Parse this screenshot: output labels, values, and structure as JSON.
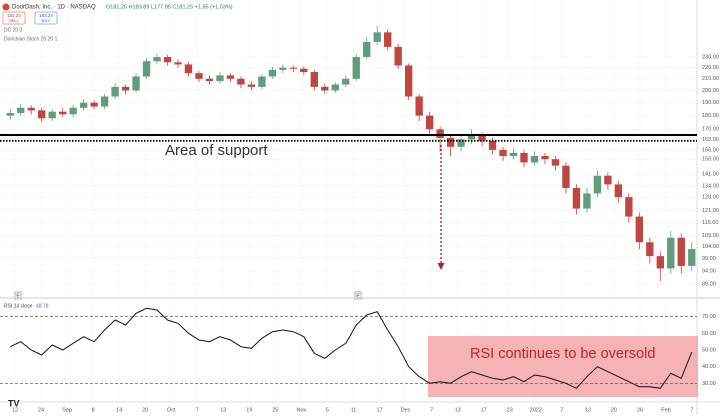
{
  "header": {
    "symbol": "DoorDash, Inc. · 1D · NASDAQ",
    "ohlc": "O181.25 H183.89 L177.95 C181.25 +1.85 (+1.03%)",
    "sell_price": "181.24",
    "sell": "SELL",
    "buy_price": "183.24",
    "buy": "BUY",
    "indicator_1": "DC 20 0",
    "indicator_2": "Donchian Stoch 20 20 1"
  },
  "chart_data": [
    {
      "type": "candlestick",
      "log_scale": true,
      "grid": true,
      "up_color": "#5e9e7c",
      "down_color": "#c0463f",
      "open": [
        180,
        182,
        186,
        184,
        178,
        183,
        181,
        186,
        190,
        187,
        195,
        203,
        200,
        212,
        226,
        230,
        225,
        223,
        215,
        210,
        208,
        213,
        210,
        205,
        203,
        212,
        218,
        220,
        219,
        216,
        203,
        200,
        205,
        210,
        230,
        245,
        255,
        240,
        222,
        195,
        180,
        170,
        164,
        158,
        163,
        166,
        162,
        156,
        152,
        154,
        148,
        152,
        150,
        146,
        133,
        122,
        130,
        140,
        135,
        128,
        118,
        106,
        100,
        95,
        108,
        96
      ],
      "high": [
        185,
        189,
        188,
        186,
        185,
        186,
        188,
        193,
        192,
        197,
        206,
        205,
        215,
        229,
        233,
        232,
        228,
        225,
        217,
        213,
        216,
        215,
        212,
        208,
        214,
        221,
        223,
        222,
        221,
        218,
        206,
        207,
        213,
        233,
        250,
        262,
        258,
        243,
        224,
        197,
        183,
        172,
        166,
        166,
        170,
        168,
        164,
        158,
        157,
        156,
        155,
        154,
        152,
        148,
        135,
        133,
        143,
        142,
        137,
        130,
        120,
        108,
        102,
        111,
        110,
        106
      ],
      "low": [
        177,
        180,
        181,
        175,
        176,
        179,
        179,
        184,
        185,
        185,
        193,
        197,
        198,
        210,
        223,
        222,
        220,
        212,
        207,
        205,
        206,
        207,
        202,
        200,
        201,
        210,
        215,
        216,
        213,
        200,
        197,
        198,
        203,
        208,
        228,
        242,
        237,
        219,
        192,
        176,
        166,
        155,
        152,
        155,
        160,
        158,
        153,
        149,
        150,
        145,
        146,
        147,
        143,
        130,
        119,
        120,
        128,
        132,
        125,
        115,
        103,
        97,
        90,
        93,
        93,
        94
      ],
      "close": [
        182,
        186,
        184,
        178,
        183,
        181,
        186,
        190,
        187,
        195,
        203,
        200,
        212,
        226,
        230,
        225,
        223,
        215,
        210,
        208,
        213,
        210,
        205,
        203,
        212,
        218,
        220,
        219,
        216,
        203,
        200,
        205,
        210,
        230,
        245,
        255,
        240,
        222,
        195,
        180,
        170,
        164,
        158,
        163,
        166,
        162,
        156,
        152,
        154,
        148,
        152,
        150,
        146,
        133,
        122,
        130,
        140,
        135,
        128,
        118,
        106,
        100,
        95,
        108,
        96,
        103
      ],
      "ylim": [
        85,
        280
      ],
      "yticks": [
        {
          "value": 89,
          "label": "89.00"
        },
        {
          "value": 94,
          "label": "94.00"
        },
        {
          "value": 99,
          "label": "99.00"
        },
        {
          "value": 104,
          "label": "104.00"
        },
        {
          "value": 109,
          "label": "109.00"
        },
        {
          "value": 115,
          "label": "115.00"
        },
        {
          "value": 121,
          "label": "121.00"
        },
        {
          "value": 128,
          "label": "128.00"
        },
        {
          "value": 134,
          "label": "134.00"
        },
        {
          "value": 141,
          "label": "141.00"
        },
        {
          "value": 150,
          "label": "150.00"
        },
        {
          "value": 156,
          "label": "156.00"
        },
        {
          "value": 163,
          "label": "163.00"
        },
        {
          "value": 170,
          "label": "170.00"
        },
        {
          "value": 180,
          "label": "180.00"
        },
        {
          "value": 190,
          "label": "190.00"
        },
        {
          "value": 200,
          "label": "200.00"
        },
        {
          "value": 210,
          "label": "210.00"
        },
        {
          "value": 220,
          "label": "220.00"
        },
        {
          "value": 230,
          "label": "230.00"
        }
      ],
      "support_levels": [
        166,
        162
      ],
      "annotation": "Area of support",
      "earnings_marker": "E"
    },
    {
      "type": "line",
      "label": "RSI 14 close",
      "last_value": "48.78",
      "color": "#111111",
      "values": [
        52,
        55,
        50,
        47,
        53,
        50,
        54,
        58,
        55,
        62,
        68,
        65,
        72,
        75,
        74,
        68,
        66,
        60,
        56,
        55,
        58,
        56,
        52,
        51,
        57,
        61,
        62,
        61,
        58,
        48,
        45,
        50,
        54,
        65,
        71,
        73,
        62,
        52,
        40,
        34,
        30,
        31,
        30,
        34,
        37,
        35,
        33,
        32,
        34,
        31,
        35,
        34,
        32,
        30,
        27,
        34,
        40,
        37,
        34,
        31,
        28,
        28,
        27,
        36,
        33,
        48.78
      ],
      "ylim": [
        20,
        80
      ],
      "yticks": [
        {
          "value": 30,
          "label": "30.00"
        },
        {
          "value": 40,
          "label": "40.00"
        },
        {
          "value": 50,
          "label": "50.00"
        },
        {
          "value": 60,
          "label": "60.00"
        },
        {
          "value": 70,
          "label": "70.00"
        }
      ],
      "bands": [
        70,
        30
      ],
      "annotation": "RSI continues to be oversold"
    }
  ],
  "x_axis_labels": [
    "12",
    "24",
    "Sep",
    "8",
    "14",
    "20",
    "Oct",
    "7",
    "13",
    "19",
    "25",
    "Nov",
    "5",
    "11",
    "17",
    "Dec",
    "7",
    "13",
    "17",
    "23",
    "2022",
    "7",
    "13",
    "20",
    "26",
    "Feb",
    "7"
  ]
}
